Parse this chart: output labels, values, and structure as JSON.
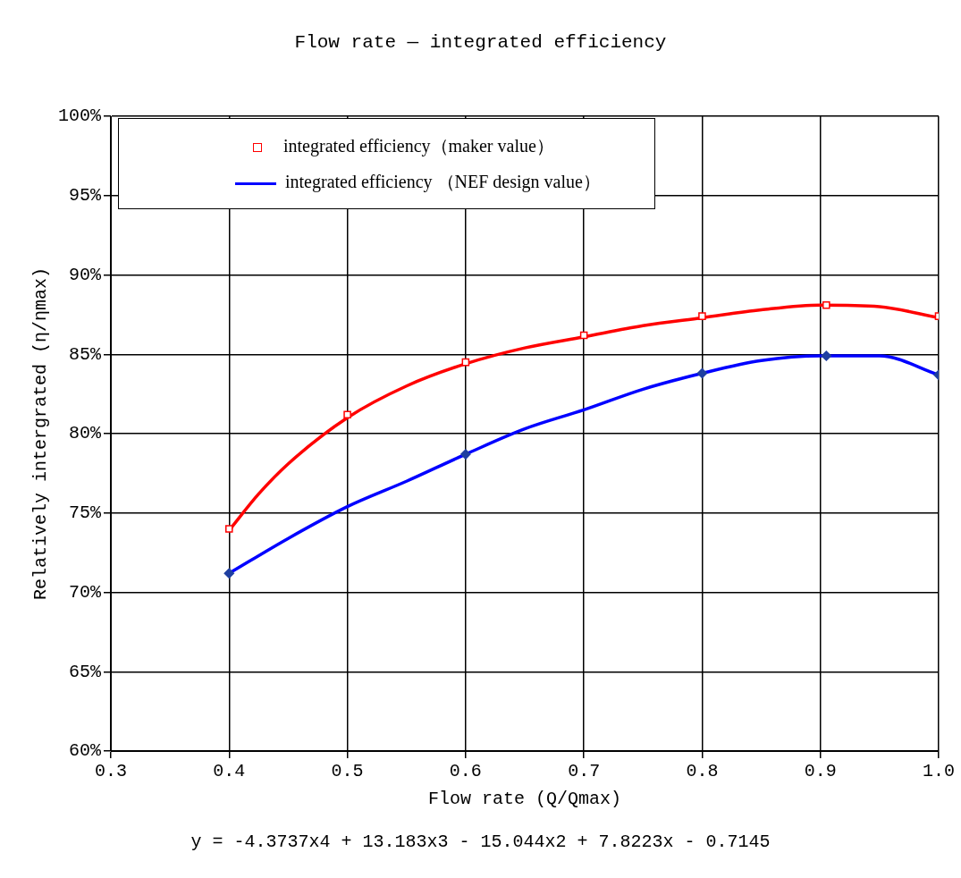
{
  "chart_data": {
    "type": "line",
    "title": "Flow rate — integrated efficiency",
    "xlabel": "Flow rate (Q/Qmax)",
    "ylabel": "Relatively intergrated (η/ηmax)",
    "annotations": [
      "y = -4.3737x4 + 13.183x3 - 15.044x2 + 7.8223x - 0.7145"
    ],
    "xlim": [
      0.3,
      1.0
    ],
    "xticks": [
      0.3,
      0.4,
      0.5,
      0.6,
      0.7,
      0.8,
      0.9,
      {
        "value": 1.0,
        "label": "1.0"
      }
    ],
    "ylim": [
      60,
      100
    ],
    "yticks": [
      {
        "value": 60,
        "label": "60%"
      },
      {
        "value": 65,
        "label": "65%"
      },
      {
        "value": 70,
        "label": "70%"
      },
      {
        "value": 75,
        "label": "75%"
      },
      {
        "value": 80,
        "label": "80%"
      },
      {
        "value": 85,
        "label": "85%"
      },
      {
        "value": 90,
        "label": "90%"
      },
      {
        "value": 95,
        "label": "95%"
      },
      {
        "value": 100,
        "label": "100%"
      }
    ],
    "grid": true,
    "legend": "top left",
    "series": [
      {
        "type": "scatter",
        "name": "integrated efficiency（maker value）",
        "color": "#ff0000",
        "marker": "square",
        "x": [
          0.4,
          0.5,
          0.6,
          0.7,
          0.8,
          0.905,
          1.0
        ],
        "values": [
          74.0,
          81.2,
          84.5,
          86.2,
          87.4,
          88.1,
          87.4
        ]
      },
      {
        "type": "line",
        "name": "integrated efficiency （NEF design value）",
        "color": "#0000ff",
        "marker": "none",
        "x": [
          0.4,
          0.45,
          0.5,
          0.55,
          0.6,
          0.65,
          0.7,
          0.75,
          0.8,
          0.85,
          0.9,
          0.95,
          1.0
        ],
        "values": [
          71.2,
          73.4,
          75.4,
          77.0,
          78.7,
          80.3,
          81.5,
          82.8,
          83.8,
          84.6,
          84.9,
          84.9,
          83.7
        ]
      },
      {
        "type": "scatter",
        "color": "#1f3fa0",
        "marker": "diamond",
        "x": [
          0.4,
          0.6,
          0.8,
          0.905,
          1.0
        ],
        "values": [
          71.2,
          78.7,
          83.8,
          84.9,
          83.7
        ]
      },
      {
        "type": "line",
        "color": "#ff0000",
        "marker": "none",
        "x": [
          0.4,
          0.425,
          0.45,
          0.5,
          0.55,
          0.6,
          0.65,
          0.7,
          0.75,
          0.8,
          0.85,
          0.9,
          0.95,
          1.0
        ],
        "values": [
          73.9,
          76.2,
          78.1,
          81.0,
          83.0,
          84.4,
          85.4,
          86.1,
          86.8,
          87.3,
          87.8,
          88.1,
          88.0,
          87.3
        ]
      }
    ]
  }
}
